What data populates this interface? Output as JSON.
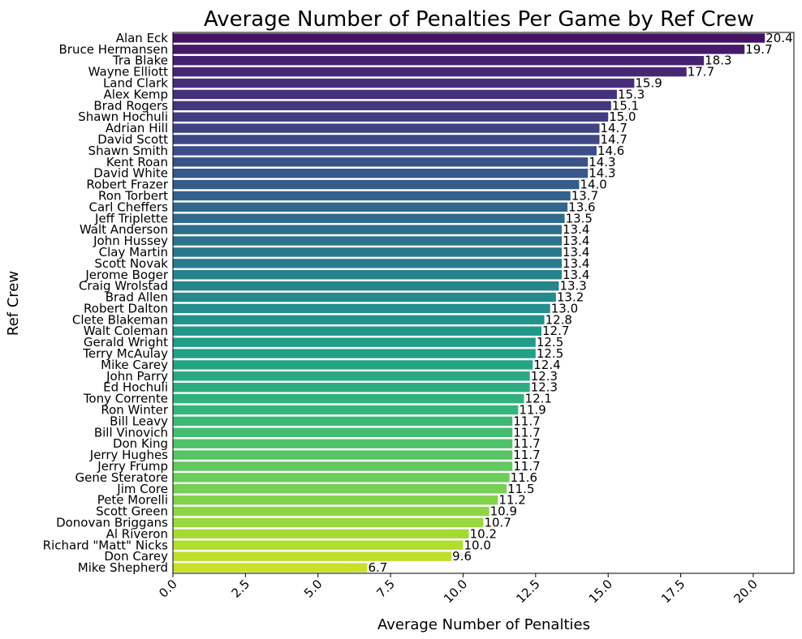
{
  "chart_data": {
    "type": "bar",
    "orientation": "horizontal",
    "title": "Average Number of Penalties Per Game by Ref Crew",
    "xlabel": "Average Number of Penalties",
    "ylabel": "Ref Crew",
    "xlim": [
      0,
      21.4
    ],
    "xticks": [
      "0.0",
      "2.5",
      "5.0",
      "7.5",
      "10.0",
      "12.5",
      "15.0",
      "17.5",
      "20.0"
    ],
    "colormap": "viridis",
    "grid": false,
    "categories": [
      "Alan Eck",
      "Bruce Hermansen",
      "Tra Blake",
      "Wayne Elliott",
      "Land Clark",
      "Alex Kemp",
      "Brad Rogers",
      "Shawn Hochuli",
      "Adrian Hill",
      "David Scott",
      "Shawn Smith",
      "Kent Roan",
      "David White",
      "Robert Frazer",
      "Ron Torbert",
      "Carl Cheffers",
      "Jeff Triplette",
      "Walt Anderson",
      "John Hussey",
      "Clay Martin",
      "Scott Novak",
      "Jerome Boger",
      "Craig Wrolstad",
      "Brad Allen",
      "Robert Dalton",
      "Clete Blakeman",
      "Walt Coleman",
      "Gerald Wright",
      "Terry McAulay",
      "Mike Carey",
      "John Parry",
      "Ed Hochuli",
      "Tony Corrente",
      "Ron Winter",
      "Bill Leavy",
      "Bill Vinovich",
      "Don King",
      "Jerry Hughes",
      "Jerry Frump",
      "Gene Steratore",
      "Jim Core",
      "Pete Morelli",
      "Scott Green",
      "Donovan Briggans",
      "Al Riveron",
      "Richard \"Matt\" Nicks",
      "Don Carey",
      "Mike Shepherd"
    ],
    "values": [
      20.4,
      19.7,
      18.3,
      17.7,
      15.9,
      15.3,
      15.1,
      15.0,
      14.7,
      14.7,
      14.6,
      14.3,
      14.3,
      14.0,
      13.7,
      13.6,
      13.5,
      13.4,
      13.4,
      13.4,
      13.4,
      13.4,
      13.3,
      13.2,
      13.0,
      12.8,
      12.7,
      12.5,
      12.5,
      12.4,
      12.3,
      12.3,
      12.1,
      11.9,
      11.7,
      11.7,
      11.7,
      11.7,
      11.7,
      11.6,
      11.5,
      11.2,
      10.9,
      10.7,
      10.2,
      10.0,
      9.6,
      6.7
    ],
    "data_labels": [
      "20.4",
      "19.7",
      "18.3",
      "17.7",
      "15.9",
      "15.3",
      "15.1",
      "15.0",
      "14.7",
      "14.7",
      "14.6",
      "14.3",
      "14.3",
      "14.0",
      "13.7",
      "13.6",
      "13.5",
      "13.4",
      "13.4",
      "13.4",
      "13.4",
      "13.4",
      "13.3",
      "13.2",
      "13.0",
      "12.8",
      "12.7",
      "12.5",
      "12.5",
      "12.4",
      "12.3",
      "12.3",
      "12.1",
      "11.9",
      "11.7",
      "11.7",
      "11.7",
      "11.7",
      "11.7",
      "11.6",
      "11.5",
      "11.2",
      "10.9",
      "10.7",
      "10.2",
      "10.0",
      "9.6",
      "6.7"
    ]
  }
}
